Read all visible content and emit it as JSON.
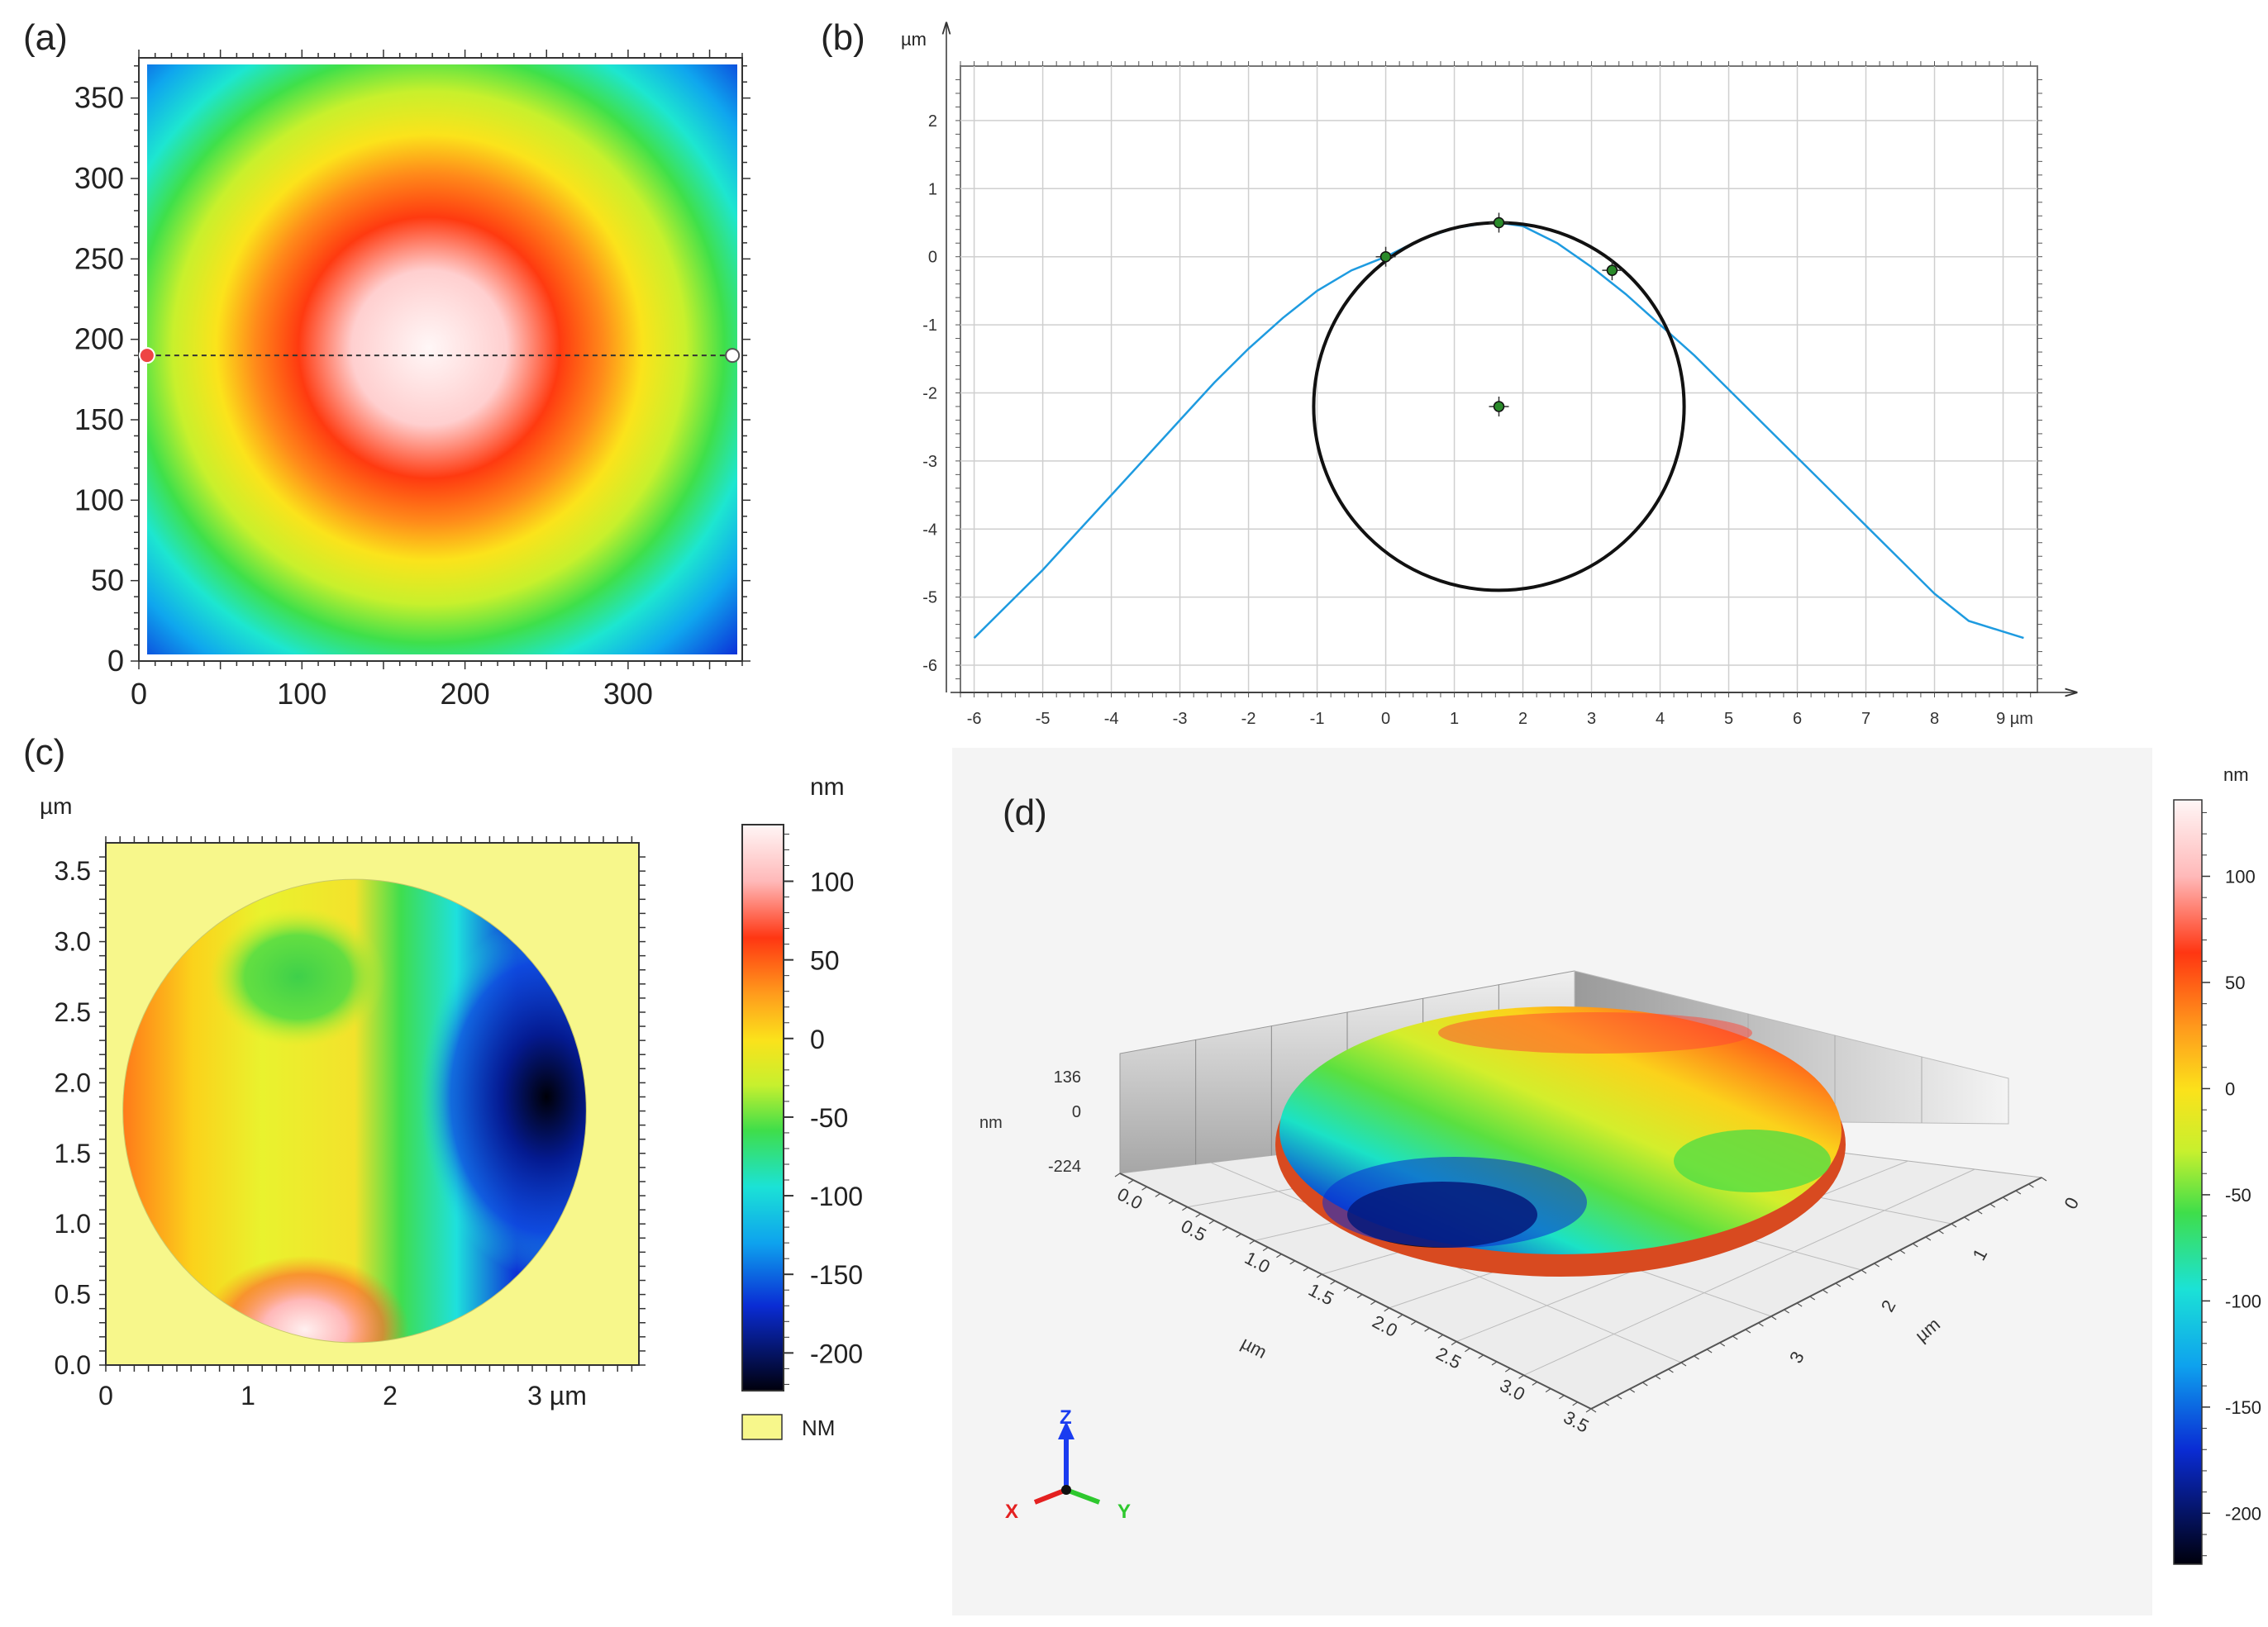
{
  "panels": {
    "a": {
      "label": "(a)"
    },
    "b": {
      "label": "(b)"
    },
    "c": {
      "label": "(c)"
    },
    "d": {
      "label": "(d)"
    }
  },
  "chart_data": [
    {
      "id": "a",
      "type": "heatmap",
      "title": "",
      "x_ticks": [
        "0",
        "100",
        "200",
        "300"
      ],
      "y_ticks": [
        "0",
        "50",
        "100",
        "150",
        "200",
        "250",
        "300",
        "350"
      ],
      "xlim": [
        0,
        370
      ],
      "ylim": [
        0,
        375
      ],
      "peak": {
        "x": 178,
        "y": 195
      },
      "profile_line": {
        "y": 190,
        "x_start": 5,
        "x_end": 364
      },
      "colormap": [
        "#0a1fd6",
        "#0fb3f0",
        "#19e6d5",
        "#3fe04a",
        "#d9f02a",
        "#fbe41b",
        "#ff7b1a",
        "#ff2b08",
        "#fff3f3"
      ]
    },
    {
      "id": "b",
      "type": "line",
      "ylabel": "µm",
      "x_unit": "µm",
      "xlim": [
        -6.2,
        9.5
      ],
      "ylim": [
        -6.4,
        2.8
      ],
      "x_ticks": [
        "-6",
        "-5",
        "-4",
        "-3",
        "-2",
        "-1",
        "0",
        "1",
        "2",
        "3",
        "4",
        "5",
        "6",
        "7",
        "8"
      ],
      "x_last_tick": "9 µm",
      "y_ticks": [
        "2",
        "1",
        "0",
        "-1",
        "-2",
        "-3",
        "-4",
        "-5",
        "-6"
      ],
      "profile": {
        "x": [
          -6,
          -5.5,
          -5,
          -4.5,
          -4,
          -3.5,
          -3,
          -2.5,
          -2,
          -1.5,
          -1,
          -0.5,
          0,
          0.5,
          1,
          1.5,
          1.65,
          2,
          2.5,
          3,
          3.5,
          4,
          4.5,
          5,
          5.5,
          6,
          6.5,
          7,
          7.5,
          8,
          8.5,
          9.3
        ],
        "y": [
          -5.6,
          -5.1,
          -4.6,
          -4.05,
          -3.5,
          -2.95,
          -2.4,
          -1.85,
          -1.35,
          -0.9,
          -0.5,
          -0.2,
          0.0,
          0.25,
          0.42,
          0.5,
          0.5,
          0.45,
          0.2,
          -0.15,
          -0.55,
          -1.0,
          -1.45,
          -1.95,
          -2.45,
          -2.95,
          -3.45,
          -3.95,
          -4.45,
          -4.95,
          -5.35,
          -5.6
        ],
        "color": "#1e9be0"
      },
      "circle": {
        "cx": 1.65,
        "cy": -2.2,
        "r": 2.7
      },
      "points": [
        {
          "x": 0.0,
          "y": 0.0
        },
        {
          "x": 1.65,
          "y": 0.5
        },
        {
          "x": 3.3,
          "y": -0.2
        },
        {
          "x": 1.65,
          "y": -2.2
        }
      ]
    },
    {
      "id": "c",
      "type": "heatmap",
      "ylabel": "µm",
      "x_ticks": [
        "0",
        "1",
        "2"
      ],
      "x_last_tick": "3 µm",
      "y_ticks": [
        "0.0",
        "0.5",
        "1.0",
        "1.5",
        "2.0",
        "2.5",
        "3.0",
        "3.5"
      ],
      "xlim": [
        0,
        3.75
      ],
      "ylim": [
        0,
        3.7
      ],
      "circle": {
        "cx": 1.75,
        "cy": 1.8,
        "r": 1.63
      },
      "blobs": [
        {
          "x": 3.1,
          "y": 1.9,
          "value": -224
        },
        {
          "x": 1.35,
          "y": 2.75,
          "value": -75
        },
        {
          "x": 1.4,
          "y": 0.25,
          "value": 100
        }
      ],
      "colorbar": {
        "unit": "nm",
        "ticks": [
          "100",
          "50",
          "0",
          "-50",
          "-100",
          "-150",
          "-200"
        ],
        "range": [
          -224,
          136
        ]
      },
      "legend": {
        "label": "NM",
        "color": "#f7f78b"
      }
    },
    {
      "id": "d",
      "type": "heatmap",
      "z_unit": "nm",
      "z_ticks": [
        "136",
        "0",
        "-224"
      ],
      "x_axis_label": "µm",
      "x_ticks": [
        "0.0",
        "0.5",
        "1.0",
        "1.5",
        "2.0",
        "2.5",
        "3.0",
        "3.5"
      ],
      "y_axis_label": "µm",
      "y_ticks": [
        "0",
        "1",
        "2",
        "3"
      ],
      "axes_triad": {
        "x": "X",
        "y": "Y",
        "z": "Z"
      },
      "colorbar": {
        "unit": "nm",
        "ticks": [
          "100",
          "50",
          "0",
          "-50",
          "-100",
          "-150",
          "-200"
        ],
        "range": [
          -224,
          136
        ]
      }
    }
  ]
}
